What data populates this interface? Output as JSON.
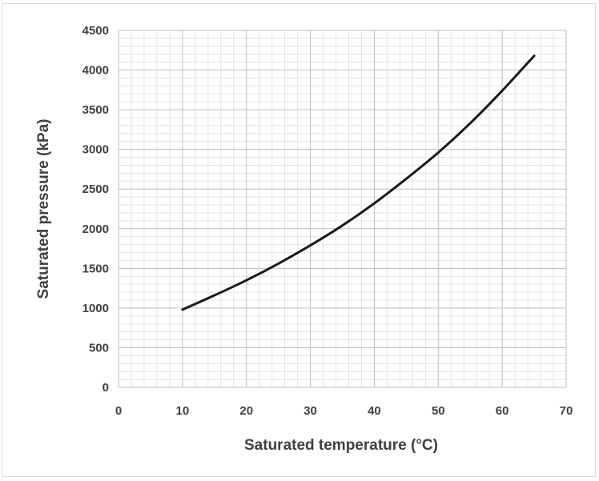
{
  "chart_data": {
    "type": "line",
    "title": "",
    "xlabel": "Saturated temperature (°C)",
    "ylabel": "Saturated pressure (kPa)",
    "xlim": [
      0,
      70
    ],
    "ylim": [
      0,
      4500
    ],
    "x_ticks": [
      "0",
      "10",
      "20",
      "30",
      "40",
      "50",
      "60",
      "70"
    ],
    "y_ticks": [
      "0",
      "500",
      "1000",
      "1500",
      "2000",
      "2500",
      "3000",
      "3500",
      "4000",
      "4500"
    ],
    "grid": true,
    "legend": "none",
    "series": [
      {
        "color": "#1a1a1a",
        "x": [
          10,
          15,
          20,
          25,
          30,
          35,
          40,
          45,
          50,
          55,
          60,
          65
        ],
        "y": [
          980,
          1160,
          1350,
          1560,
          1790,
          2040,
          2320,
          2630,
          2960,
          3330,
          3740,
          4180
        ]
      }
    ]
  }
}
